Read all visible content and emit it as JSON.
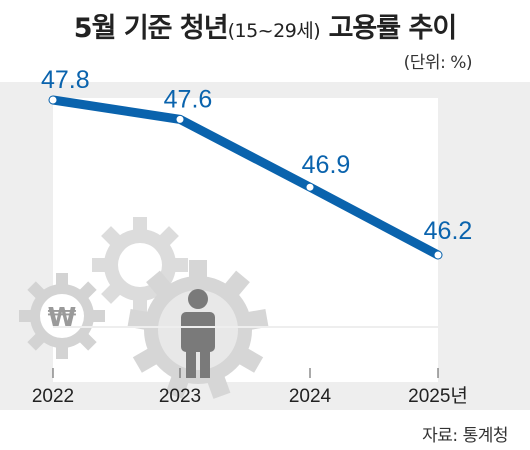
{
  "header": {
    "title_main": "5월 기준 청년",
    "title_paren": "(15~29세)",
    "title_end": " 고용률 추이",
    "unit": "(단위: %)"
  },
  "chart_data": {
    "type": "line",
    "categories": [
      "2022",
      "2023",
      "2024",
      "2025년"
    ],
    "series": [
      {
        "values": [
          47.8,
          47.6,
          46.9,
          46.2
        ]
      }
    ],
    "ylim": [
      45.5,
      48.5
    ],
    "grid": false,
    "line_color": "#0a63ad"
  },
  "source": "자료: 통계청",
  "icons": [
    "gear-won-icon",
    "gear-person-icon"
  ]
}
